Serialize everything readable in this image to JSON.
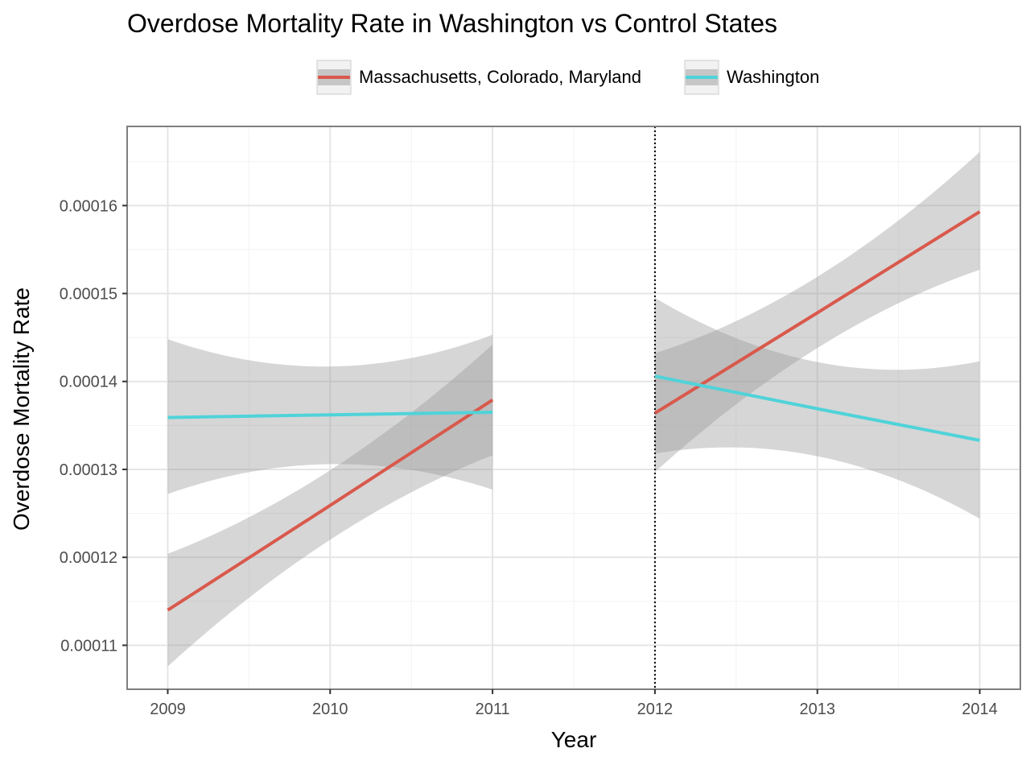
{
  "chart_data": {
    "type": "line",
    "title": "Overdose Mortality Rate in Washington vs Control States",
    "xlabel": "Year",
    "ylabel": "Overdose Mortality Rate",
    "xlim": [
      2008.75,
      2014.25
    ],
    "ylim": [
      0.000105,
      0.000169
    ],
    "x_ticks": [
      "2009",
      "2010",
      "2011",
      "2012",
      "2013",
      "2014"
    ],
    "y_ticks": [
      "0.00011",
      "0.00012",
      "0.00013",
      "0.00014",
      "0.00015",
      "0.00016"
    ],
    "intervention_line": {
      "x": 2012,
      "style": "dotted"
    },
    "grid": true,
    "legend_position": "top",
    "series": [
      {
        "name": "Massachusetts, Colorado, Maryland",
        "color": "#d9594c",
        "segments": [
          {
            "x": [
              2009,
              2010,
              2011
            ],
            "y": [
              0.000114,
              0.0001259,
              0.0001379
            ],
            "ci_lower": [
              0.0001076,
              0.000122,
              0.0001316
            ],
            "ci_upper": [
              0.0001204,
              0.0001299,
              0.0001442
            ]
          },
          {
            "x": [
              2012,
              2013,
              2014
            ],
            "y": [
              0.0001364,
              0.0001478,
              0.0001593
            ],
            "ci_lower": [
              0.0001297,
              0.0001438,
              0.0001527
            ],
            "ci_upper": [
              0.0001432,
              0.0001519,
              0.0001661
            ]
          }
        ]
      },
      {
        "name": "Washington",
        "color": "#4fd3d9",
        "segments": [
          {
            "x": [
              2009,
              2010,
              2011
            ],
            "y": [
              0.0001359,
              0.0001362,
              0.0001365
            ],
            "ci_lower": [
              0.0001272,
              0.0001306,
              0.0001277
            ],
            "ci_upper": [
              0.0001448,
              0.0001417,
              0.0001453
            ]
          },
          {
            "x": [
              2012,
              2013,
              2014
            ],
            "y": [
              0.0001406,
              0.0001369,
              0.0001333
            ],
            "ci_lower": [
              0.0001318,
              0.0001315,
              0.0001244
            ],
            "ci_upper": [
              0.0001495,
              0.0001422,
              0.0001423
            ]
          }
        ]
      }
    ]
  }
}
